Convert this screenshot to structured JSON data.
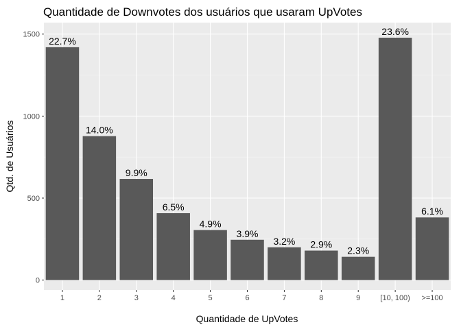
{
  "chart_data": {
    "type": "bar",
    "title": "Quantidade de Downvotes dos usuários que usaram UpVotes",
    "xlabel": "Quantidade de UpVotes",
    "ylabel": "Qtd. de Usuários",
    "categories": [
      "1",
      "2",
      "3",
      "4",
      "5",
      "6",
      "7",
      "8",
      "9",
      "[10, 100)",
      ">=100"
    ],
    "values": [
      1420,
      878,
      617,
      408,
      305,
      246,
      200,
      180,
      142,
      1478,
      382
    ],
    "data_labels": [
      "22.7%",
      "14.0%",
      "9.9%",
      "6.5%",
      "4.9%",
      "3.9%",
      "3.2%",
      "2.9%",
      "2.3%",
      "23.6%",
      "6.1%"
    ],
    "y_ticks": [
      "0",
      "500",
      "1000",
      "1500"
    ],
    "ylim": [
      -60,
      1570
    ],
    "grid": true,
    "legend": "none",
    "colors": {
      "bar": "#595959",
      "panel": "#ebebeb",
      "grid_major": "#ffffff",
      "grid_minor": "#f5f5f5"
    }
  }
}
